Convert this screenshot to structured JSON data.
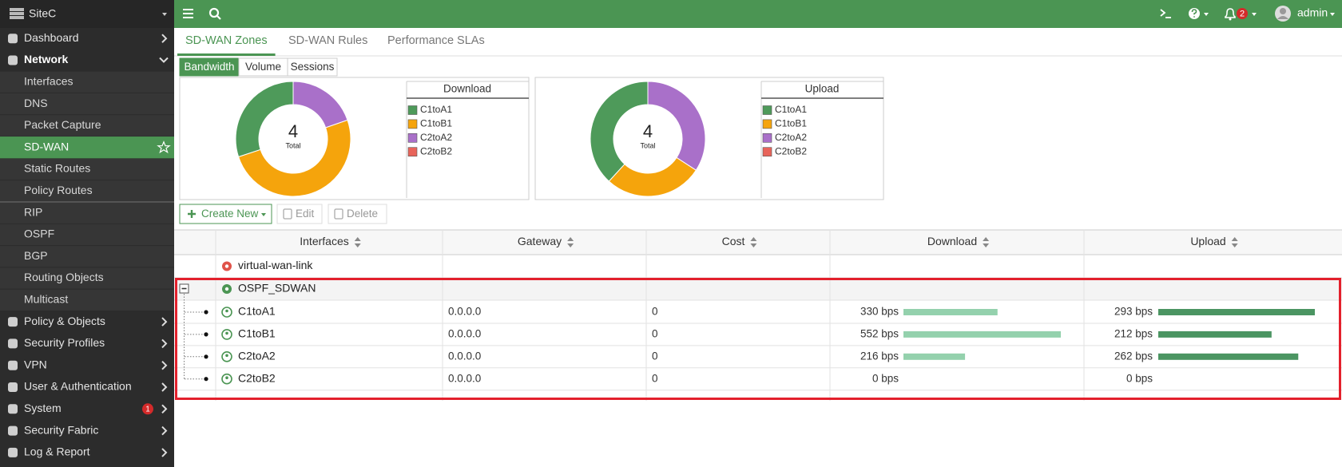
{
  "sidebar": {
    "device": "SiteC",
    "sections": [
      {
        "label": "Dashboard"
      },
      {
        "label": "Network",
        "children": [
          [
            {
              "label": "Interfaces"
            },
            {
              "label": "DNS"
            },
            {
              "label": "Packet Capture"
            },
            {
              "label": "SD-WAN",
              "active": true
            },
            {
              "label": "Static Routes"
            },
            {
              "label": "Policy Routes"
            }
          ],
          [
            {
              "label": "RIP"
            },
            {
              "label": "OSPF"
            },
            {
              "label": "BGP"
            },
            {
              "label": "Routing Objects"
            },
            {
              "label": "Multicast"
            }
          ]
        ]
      },
      {
        "label": "Policy & Objects"
      },
      {
        "label": "Security Profiles"
      },
      {
        "label": "VPN"
      },
      {
        "label": "User & Authentication"
      },
      {
        "label": "System",
        "badge": 1
      },
      {
        "label": "Security Fabric"
      },
      {
        "label": "Log & Report"
      }
    ]
  },
  "topbar": {
    "alerts": 2,
    "user": "admin"
  },
  "tabs": [
    {
      "label": "SD-WAN Zones",
      "active": true
    },
    {
      "label": "SD-WAN Rules"
    },
    {
      "label": "Performance SLAs"
    }
  ],
  "view_buttons": [
    {
      "label": "Bandwidth",
      "active": true
    },
    {
      "label": "Volume"
    },
    {
      "label": "Sessions"
    }
  ],
  "actions": [
    "Create New",
    "Edit",
    "Delete"
  ],
  "donuts": [
    {
      "title": "Download",
      "total": 4,
      "total_label": "Total"
    },
    {
      "title": "Upload",
      "total": 4,
      "total_label": "Total"
    }
  ],
  "member_colors": [
    "#4e9a5a",
    "#f5a40c",
    "#a970c9",
    "#e8645a"
  ],
  "table": {
    "columns": [
      "Interfaces",
      "Gateway",
      "Cost",
      "Download",
      "Upload"
    ],
    "zones": [
      "virtual-wan-link",
      "OSPF_SDWAN"
    ],
    "rows": [
      {
        "interface": "C1toA1",
        "gateway": "0.0.0.0",
        "cost": 0,
        "download": {
          "value": 330,
          "label": "330 bps"
        },
        "upload": {
          "value": 293,
          "label": "293 bps"
        }
      },
      {
        "interface": "C1toB1",
        "gateway": "0.0.0.0",
        "cost": 0,
        "download": {
          "value": 552,
          "label": "552 bps"
        },
        "upload": {
          "value": 212,
          "label": "212 bps"
        }
      },
      {
        "interface": "C2toA2",
        "gateway": "0.0.0.0",
        "cost": 0,
        "download": {
          "value": 216,
          "label": "216 bps"
        },
        "upload": {
          "value": 262,
          "label": "262 bps"
        }
      },
      {
        "interface": "C2toB2",
        "gateway": "0.0.0.0",
        "cost": 0,
        "download": {
          "value": 0,
          "label": "0 bps"
        },
        "upload": {
          "value": 0,
          "label": "0 bps"
        }
      }
    ]
  }
}
